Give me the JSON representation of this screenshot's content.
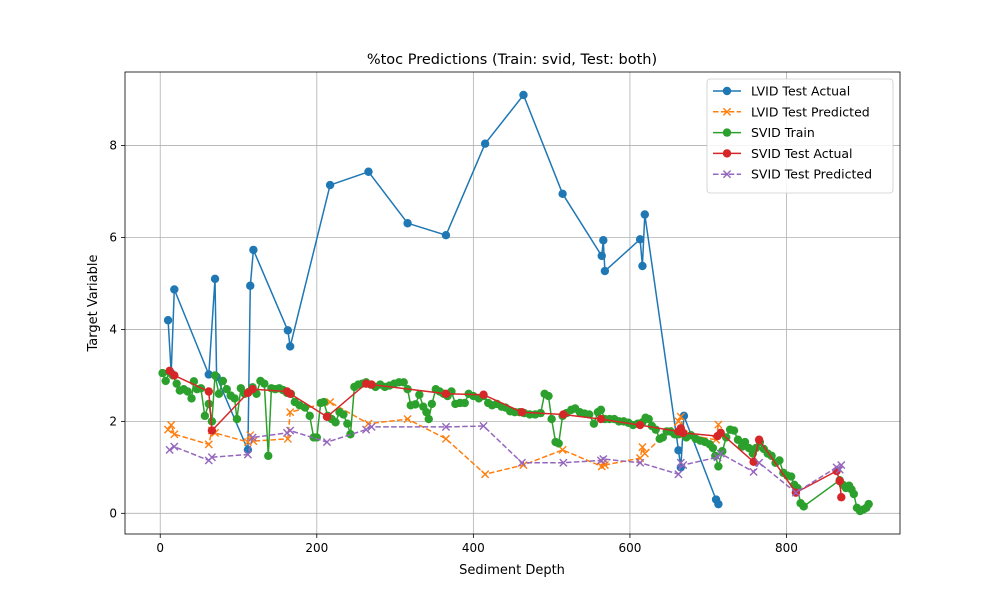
{
  "chart_data": {
    "type": "line",
    "title": "%toc Predictions (Train: svid, Test: both)",
    "xlabel": "Sediment Depth",
    "ylabel": "Target Variable",
    "xlim": [
      -45,
      945
    ],
    "ylim": [
      -0.45,
      9.6
    ],
    "xticks": [
      0,
      200,
      400,
      600,
      800
    ],
    "yticks": [
      0,
      2,
      4,
      6,
      8
    ],
    "grid": true,
    "legend_position": "top-right",
    "series": [
      {
        "name": "LVID Test Actual",
        "color": "#1f77b4",
        "marker": "circle",
        "linestyle": "solid",
        "points": [
          [
            10,
            4.2
          ],
          [
            14,
            3.05
          ],
          [
            18,
            4.87
          ],
          [
            62,
            3.02
          ],
          [
            70,
            5.1
          ],
          [
            72,
            2.97
          ],
          [
            112,
            1.38
          ],
          [
            115,
            4.95
          ],
          [
            119,
            5.73
          ],
          [
            163,
            3.98
          ],
          [
            166,
            3.63
          ],
          [
            217,
            7.14
          ],
          [
            266,
            7.43
          ],
          [
            316,
            6.31
          ],
          [
            365,
            6.05
          ],
          [
            415,
            8.04
          ],
          [
            464,
            9.1
          ],
          [
            514,
            6.95
          ],
          [
            564,
            5.6
          ],
          [
            566,
            5.94
          ],
          [
            568,
            5.27
          ],
          [
            613,
            5.96
          ],
          [
            616,
            5.38
          ],
          [
            619,
            6.5
          ],
          [
            662,
            1.37
          ],
          [
            665,
            1.0
          ],
          [
            669,
            2.12
          ],
          [
            710,
            0.3
          ],
          [
            713,
            0.2
          ]
        ]
      },
      {
        "name": "LVID Test Predicted",
        "color": "#ff7f0e",
        "marker": "x",
        "linestyle": "dashed",
        "points": [
          [
            10,
            1.82
          ],
          [
            14,
            1.92
          ],
          [
            18,
            1.72
          ],
          [
            62,
            1.5
          ],
          [
            66,
            1.8
          ],
          [
            70,
            1.75
          ],
          [
            112,
            1.55
          ],
          [
            115,
            1.7
          ],
          [
            119,
            1.57
          ],
          [
            163,
            1.62
          ],
          [
            166,
            2.2
          ],
          [
            217,
            2.42
          ],
          [
            266,
            1.95
          ],
          [
            316,
            2.05
          ],
          [
            365,
            1.62
          ],
          [
            415,
            0.85
          ],
          [
            464,
            1.05
          ],
          [
            514,
            1.38
          ],
          [
            564,
            1.02
          ],
          [
            566,
            1.1
          ],
          [
            568,
            1.05
          ],
          [
            613,
            1.2
          ],
          [
            616,
            1.44
          ],
          [
            619,
            1.3
          ],
          [
            662,
            2.0
          ],
          [
            665,
            2.1
          ],
          [
            669,
            1.72
          ],
          [
            710,
            1.6
          ],
          [
            713,
            1.93
          ]
        ]
      },
      {
        "name": "SVID Train",
        "color": "#2ca02c",
        "marker": "circle",
        "linestyle": "solid",
        "points": [
          [
            3,
            3.05
          ],
          [
            7,
            2.88
          ],
          [
            12,
            3.07
          ],
          [
            16,
            3.0
          ],
          [
            21,
            2.82
          ],
          [
            25,
            2.67
          ],
          [
            30,
            2.7
          ],
          [
            35,
            2.65
          ],
          [
            40,
            2.5
          ],
          [
            43,
            2.87
          ],
          [
            47,
            2.7
          ],
          [
            52,
            2.72
          ],
          [
            57,
            2.12
          ],
          [
            62,
            2.38
          ],
          [
            66,
            2.0
          ],
          [
            70,
            3.0
          ],
          [
            75,
            2.6
          ],
          [
            80,
            2.88
          ],
          [
            85,
            2.7
          ],
          [
            90,
            2.56
          ],
          [
            95,
            2.5
          ],
          [
            98,
            2.05
          ],
          [
            103,
            2.72
          ],
          [
            108,
            2.6
          ],
          [
            113,
            2.64
          ],
          [
            118,
            2.74
          ],
          [
            123,
            2.6
          ],
          [
            128,
            2.88
          ],
          [
            133,
            2.82
          ],
          [
            138,
            1.25
          ],
          [
            142,
            2.72
          ],
          [
            147,
            2.7
          ],
          [
            152,
            2.72
          ],
          [
            157,
            2.68
          ],
          [
            162,
            2.62
          ],
          [
            167,
            2.6
          ],
          [
            172,
            2.42
          ],
          [
            178,
            2.35
          ],
          [
            185,
            2.3
          ],
          [
            191,
            2.12
          ],
          [
            196,
            1.65
          ],
          [
            200,
            1.65
          ],
          [
            205,
            2.4
          ],
          [
            209,
            2.42
          ],
          [
            214,
            2.12
          ],
          [
            219,
            2.05
          ],
          [
            224,
            1.98
          ],
          [
            229,
            2.2
          ],
          [
            234,
            2.15
          ],
          [
            239,
            1.95
          ],
          [
            243,
            1.72
          ],
          [
            248,
            2.75
          ],
          [
            253,
            2.8
          ],
          [
            258,
            2.82
          ],
          [
            263,
            2.85
          ],
          [
            269,
            2.8
          ],
          [
            275,
            2.75
          ],
          [
            281,
            2.8
          ],
          [
            287,
            2.75
          ],
          [
            293,
            2.78
          ],
          [
            299,
            2.82
          ],
          [
            305,
            2.85
          ],
          [
            311,
            2.85
          ],
          [
            316,
            2.7
          ],
          [
            320,
            2.35
          ],
          [
            326,
            2.37
          ],
          [
            331,
            2.58
          ],
          [
            336,
            2.32
          ],
          [
            340,
            2.2
          ],
          [
            343,
            2.05
          ],
          [
            347,
            2.38
          ],
          [
            352,
            2.7
          ],
          [
            357,
            2.65
          ],
          [
            362,
            2.6
          ],
          [
            367,
            2.55
          ],
          [
            372,
            2.65
          ],
          [
            377,
            2.38
          ],
          [
            383,
            2.4
          ],
          [
            389,
            2.4
          ],
          [
            394,
            2.6
          ],
          [
            400,
            2.55
          ],
          [
            407,
            2.5
          ],
          [
            413,
            2.55
          ],
          [
            419,
            2.4
          ],
          [
            424,
            2.35
          ],
          [
            430,
            2.38
          ],
          [
            436,
            2.32
          ],
          [
            441,
            2.3
          ],
          [
            447,
            2.22
          ],
          [
            453,
            2.2
          ],
          [
            459,
            2.2
          ],
          [
            465,
            2.18
          ],
          [
            472,
            2.15
          ],
          [
            479,
            2.15
          ],
          [
            486,
            2.18
          ],
          [
            491,
            2.6
          ],
          [
            496,
            2.55
          ],
          [
            500,
            2.05
          ],
          [
            505,
            1.55
          ],
          [
            509,
            1.52
          ],
          [
            514,
            2.12
          ],
          [
            519,
            2.18
          ],
          [
            525,
            2.25
          ],
          [
            530,
            2.28
          ],
          [
            536,
            2.2
          ],
          [
            542,
            2.17
          ],
          [
            548,
            2.15
          ],
          [
            554,
            1.95
          ],
          [
            559,
            2.2
          ],
          [
            563,
            2.25
          ],
          [
            568,
            2.05
          ],
          [
            574,
            2.05
          ],
          [
            580,
            2.05
          ],
          [
            586,
            2.0
          ],
          [
            592,
            2.0
          ],
          [
            598,
            1.97
          ],
          [
            604,
            1.92
          ],
          [
            610,
            1.95
          ],
          [
            616,
            1.98
          ],
          [
            620,
            2.08
          ],
          [
            624,
            2.05
          ],
          [
            628,
            1.9
          ],
          [
            633,
            1.82
          ],
          [
            638,
            1.62
          ],
          [
            642,
            1.65
          ],
          [
            647,
            1.78
          ],
          [
            652,
            1.78
          ],
          [
            657,
            1.72
          ],
          [
            662,
            1.72
          ],
          [
            667,
            1.75
          ],
          [
            672,
            1.65
          ],
          [
            678,
            1.7
          ],
          [
            684,
            1.62
          ],
          [
            690,
            1.58
          ],
          [
            696,
            1.55
          ],
          [
            702,
            1.5
          ],
          [
            706,
            1.42
          ],
          [
            709,
            1.25
          ],
          [
            713,
            1.02
          ],
          [
            718,
            1.35
          ],
          [
            723,
            1.65
          ],
          [
            728,
            1.82
          ],
          [
            733,
            1.8
          ],
          [
            738,
            1.6
          ],
          [
            743,
            1.45
          ],
          [
            747,
            1.55
          ],
          [
            752,
            1.42
          ],
          [
            757,
            1.3
          ],
          [
            761,
            1.42
          ],
          [
            766,
            1.55
          ],
          [
            771,
            1.4
          ],
          [
            776,
            1.3
          ],
          [
            781,
            1.25
          ],
          [
            786,
            1.1
          ],
          [
            791,
            1.15
          ],
          [
            796,
            0.88
          ],
          [
            801,
            0.82
          ],
          [
            806,
            0.8
          ],
          [
            810,
            0.62
          ],
          [
            814,
            0.55
          ],
          [
            818,
            0.22
          ],
          [
            822,
            0.15
          ],
          [
            868,
            0.72
          ],
          [
            872,
            0.62
          ],
          [
            876,
            0.55
          ],
          [
            880,
            0.6
          ],
          [
            883,
            0.52
          ],
          [
            886,
            0.42
          ],
          [
            890,
            0.12
          ],
          [
            894,
            0.05
          ],
          [
            898,
            0.08
          ],
          [
            902,
            0.12
          ],
          [
            905,
            0.2
          ]
        ]
      },
      {
        "name": "SVID Test Actual",
        "color": "#d62728",
        "marker": "circle",
        "linestyle": "solid",
        "points": [
          [
            12,
            3.1
          ],
          [
            18,
            3.0
          ],
          [
            62,
            2.65
          ],
          [
            66,
            1.8
          ],
          [
            112,
            2.62
          ],
          [
            118,
            2.7
          ],
          [
            162,
            2.65
          ],
          [
            166,
            2.6
          ],
          [
            213,
            2.1
          ],
          [
            263,
            2.82
          ],
          [
            270,
            2.8
          ],
          [
            365,
            2.6
          ],
          [
            413,
            2.58
          ],
          [
            462,
            2.2
          ],
          [
            515,
            2.15
          ],
          [
            563,
            2.05
          ],
          [
            613,
            1.92
          ],
          [
            662,
            1.78
          ],
          [
            665,
            1.85
          ],
          [
            668,
            1.75
          ],
          [
            712,
            1.68
          ],
          [
            716,
            1.75
          ],
          [
            758,
            1.12
          ],
          [
            765,
            1.6
          ],
          [
            812,
            0.45
          ],
          [
            864,
            0.92
          ],
          [
            868,
            0.7
          ],
          [
            870,
            0.35
          ]
        ]
      },
      {
        "name": "SVID Test Predicted",
        "color": "#9467bd",
        "marker": "x",
        "linestyle": "dashed",
        "points": [
          [
            12,
            1.38
          ],
          [
            18,
            1.45
          ],
          [
            62,
            1.15
          ],
          [
            66,
            1.22
          ],
          [
            112,
            1.28
          ],
          [
            118,
            1.65
          ],
          [
            162,
            1.75
          ],
          [
            166,
            1.8
          ],
          [
            213,
            1.55
          ],
          [
            263,
            1.82
          ],
          [
            270,
            1.88
          ],
          [
            365,
            1.88
          ],
          [
            413,
            1.9
          ],
          [
            462,
            1.1
          ],
          [
            515,
            1.1
          ],
          [
            563,
            1.15
          ],
          [
            566,
            1.18
          ],
          [
            613,
            1.1
          ],
          [
            662,
            0.85
          ],
          [
            665,
            1.1
          ],
          [
            668,
            1.05
          ],
          [
            712,
            1.22
          ],
          [
            716,
            1.3
          ],
          [
            758,
            0.9
          ],
          [
            765,
            1.1
          ],
          [
            812,
            0.45
          ],
          [
            864,
            1.0
          ],
          [
            868,
            0.95
          ],
          [
            870,
            1.05
          ]
        ]
      }
    ]
  }
}
